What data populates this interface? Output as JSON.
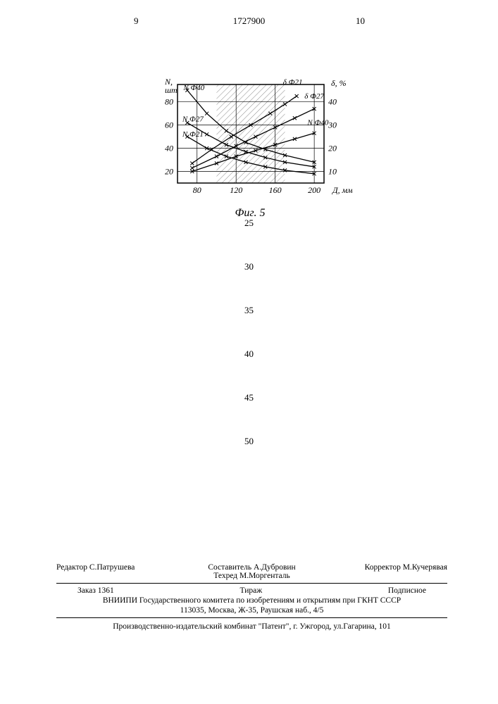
{
  "header": {
    "left_col": "9",
    "doc_number": "1727900",
    "right_col": "10"
  },
  "chart": {
    "type": "line",
    "caption": "Фиг. 5",
    "x_axis": {
      "label": "Д, мм",
      "ticks": [
        80,
        120,
        160,
        200
      ],
      "xlim": [
        60,
        210
      ]
    },
    "y_left": {
      "label": "N, шт",
      "ticks": [
        20,
        40,
        60,
        80
      ],
      "ylim": [
        10,
        95
      ]
    },
    "y_right": {
      "label": "δ, %",
      "ticks": [
        10,
        20,
        30,
        40
      ],
      "ylim": [
        5,
        48
      ]
    },
    "hatched_band_x": [
      100,
      170
    ],
    "background_color": "#ffffff",
    "grid_color": "#000000",
    "line_width": 1.3,
    "series": [
      {
        "name": "N Ф40",
        "label_pos": [
          66,
          90
        ],
        "points": [
          [
            70,
            90
          ],
          [
            90,
            70
          ],
          [
            110,
            55
          ],
          [
            130,
            45
          ],
          [
            150,
            39
          ],
          [
            170,
            34
          ],
          [
            200,
            28
          ]
        ]
      },
      {
        "name": "N Ф27",
        "label_pos": [
          65,
          63
        ],
        "points": [
          [
            70,
            62
          ],
          [
            90,
            52
          ],
          [
            110,
            43
          ],
          [
            130,
            37
          ],
          [
            150,
            32
          ],
          [
            170,
            28
          ],
          [
            200,
            24
          ]
        ]
      },
      {
        "name": "N Ф21",
        "label_pos": [
          65,
          50
        ],
        "points": [
          [
            70,
            50
          ],
          [
            90,
            40
          ],
          [
            110,
            33
          ],
          [
            130,
            28
          ],
          [
            150,
            24
          ],
          [
            170,
            21
          ],
          [
            200,
            18
          ]
        ]
      },
      {
        "name": "δ Ф21",
        "label_pos": [
          168,
          95
        ],
        "points": [
          [
            75,
            27
          ],
          [
            95,
            39
          ],
          [
            115,
            50
          ],
          [
            135,
            60
          ],
          [
            155,
            70
          ],
          [
            170,
            78
          ],
          [
            182,
            85
          ]
        ]
      },
      {
        "name": "δ Ф27",
        "label_pos": [
          190,
          83
        ],
        "points": [
          [
            75,
            23
          ],
          [
            100,
            33
          ],
          [
            120,
            42
          ],
          [
            140,
            50
          ],
          [
            160,
            58
          ],
          [
            180,
            66
          ],
          [
            200,
            74
          ]
        ]
      },
      {
        "name": "N Ф40",
        "label_pos": [
          193,
          60
        ],
        "points": [
          [
            75,
            20
          ],
          [
            100,
            27
          ],
          [
            120,
            33
          ],
          [
            140,
            38
          ],
          [
            160,
            43
          ],
          [
            180,
            48
          ],
          [
            200,
            53
          ]
        ]
      }
    ]
  },
  "line_numbers": [
    "25",
    "30",
    "35",
    "40",
    "45",
    "50"
  ],
  "credits": {
    "editor": "Редактор  С.Патрушева",
    "compiler": "Составитель  А.Дубровин",
    "techred": "Техред М.Моргенталь",
    "corrector": "Корректор  М.Кучерявая",
    "order": "Заказ  1361",
    "tirazh": "Тираж",
    "subscr": "Подписное",
    "institute1": "ВНИИПИ Государственного комитета по изобретениям и открытиям при ГКНТ СССР",
    "institute2": "113035, Москва, Ж-35, Раушская наб., 4/5",
    "production": "Производственно-издательский комбинат \"Патент\", г. Ужгород, ул.Гагарина, 101"
  }
}
